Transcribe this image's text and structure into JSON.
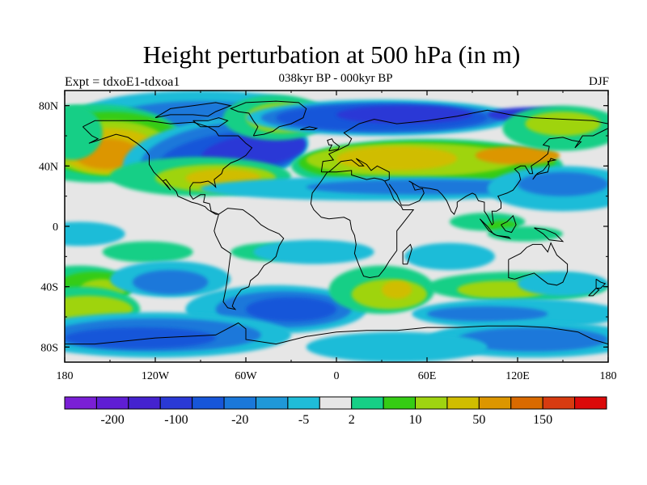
{
  "title": "Height perturbation at 500 hPa (in m)",
  "subtitle": "038kyr BP - 000kyr BP",
  "left_label": "Expt = tdxoE1-tdxoa1",
  "right_label": "DJF",
  "y_ticks": [
    "80N",
    "40N",
    "0",
    "40S",
    "80S"
  ],
  "x_ticks": [
    "180",
    "120W",
    "60W",
    "0",
    "60E",
    "120E",
    "180"
  ],
  "colorbar": {
    "colors": [
      "#7a1fd6",
      "#5f1ed4",
      "#4422cf",
      "#2a39d6",
      "#1756d9",
      "#1a78da",
      "#1f98d8",
      "#1fbcd8",
      "#e6e6e6",
      "#16cf86",
      "#35cc14",
      "#9fd410",
      "#d0bd00",
      "#dc9600",
      "#d96a00",
      "#d73b10",
      "#db0a0a"
    ],
    "labels": [
      "-200",
      "-100",
      "-20",
      "-5",
      "2",
      "10",
      "50",
      "150"
    ]
  },
  "map_colors": {
    "neutral": "#e6e6e6",
    "neg_light": "#1fbcd8",
    "neg_mid": "#1a78da",
    "neg_strong": "#1756d9",
    "neg_deep": "#2a39d6",
    "pos_light": "#16cf86",
    "pos_mid": "#35cc14",
    "pos_yg": "#9fd410",
    "pos_yellow": "#d0bd00",
    "pos_orange": "#dc9600",
    "coast": "#000000"
  }
}
